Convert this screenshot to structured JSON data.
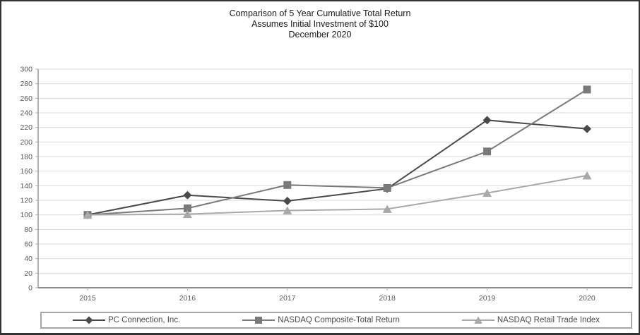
{
  "title": {
    "line1": "Comparison of 5 Year Cumulative Total Return",
    "line2": "Assumes Initial Investment of $100",
    "line3": "December 2020"
  },
  "chart_data": {
    "type": "line",
    "x": [
      "2015",
      "2016",
      "2017",
      "2018",
      "2019",
      "2020"
    ],
    "series": [
      {
        "name": "PC Connection, Inc.",
        "marker": "diamond",
        "color": "#4a4a4a",
        "values": [
          100,
          127,
          119,
          136,
          230,
          218
        ]
      },
      {
        "name": "NASDAQ Composite-Total Return",
        "marker": "square",
        "color": "#7a7a7a",
        "values": [
          100,
          109,
          141,
          137,
          187,
          272
        ]
      },
      {
        "name": "NASDAQ Retail Trade Index",
        "marker": "triangle",
        "color": "#a9a9a9",
        "values": [
          100,
          101,
          106,
          108,
          130,
          154
        ]
      }
    ],
    "ylim": [
      0,
      300
    ],
    "ytick_step": 20,
    "grid": true,
    "legend_position": "bottom",
    "colors": {
      "gridline": "#d9d9d9",
      "axis_left": "#9a9a9a",
      "axis_bottom": "#8c8c8c",
      "plot_right_border": "#cfcfcf",
      "tick_label": "#595959",
      "tick_mark": "#b0b0b0"
    }
  }
}
